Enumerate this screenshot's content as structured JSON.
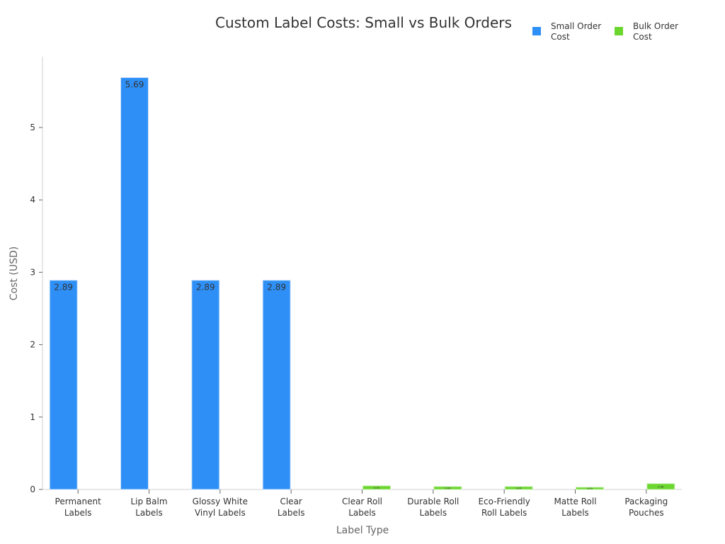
{
  "chart_data": {
    "type": "bar",
    "title": "Custom Label Costs: Small vs Bulk Orders",
    "xlabel": "Label Type",
    "ylabel": "Cost (USD)",
    "ylim": [
      0,
      5.9
    ],
    "yticks": [
      0,
      1,
      2,
      3,
      4,
      5
    ],
    "grid": false,
    "legend_position": "top-right",
    "categories": [
      "Permanent Labels",
      "Lip Balm Labels",
      "Glossy White Vinyl Labels",
      "Clear Labels",
      "Clear Roll Labels",
      "Durable Roll Labels",
      "Eco-Friendly Roll Labels",
      "Matte Roll Labels",
      "Packaging Pouches"
    ],
    "category_lines": [
      [
        "Permanent",
        "Labels"
      ],
      [
        "Lip Balm",
        "Labels"
      ],
      [
        "Glossy White",
        "Vinyl Labels"
      ],
      [
        "Clear",
        "Labels"
      ],
      [
        "Clear Roll",
        "Labels"
      ],
      [
        "Durable Roll",
        "Labels"
      ],
      [
        "Eco-Friendly",
        "Roll Labels"
      ],
      [
        "Matte Roll",
        "Labels"
      ],
      [
        "Packaging",
        "Pouches"
      ]
    ],
    "series": [
      {
        "name": "Small Order Cost",
        "legend_lines": [
          "Small Order",
          "Cost"
        ],
        "color": "#2e90f7",
        "values": [
          2.89,
          5.69,
          2.89,
          2.89,
          null,
          null,
          null,
          null,
          null
        ]
      },
      {
        "name": "Bulk Order Cost",
        "legend_lines": [
          "Bulk Order",
          "Cost"
        ],
        "color": "#6ad62e",
        "values": [
          null,
          null,
          null,
          null,
          0.05,
          0.04,
          0.04,
          0.03,
          0.08
        ]
      }
    ]
  }
}
